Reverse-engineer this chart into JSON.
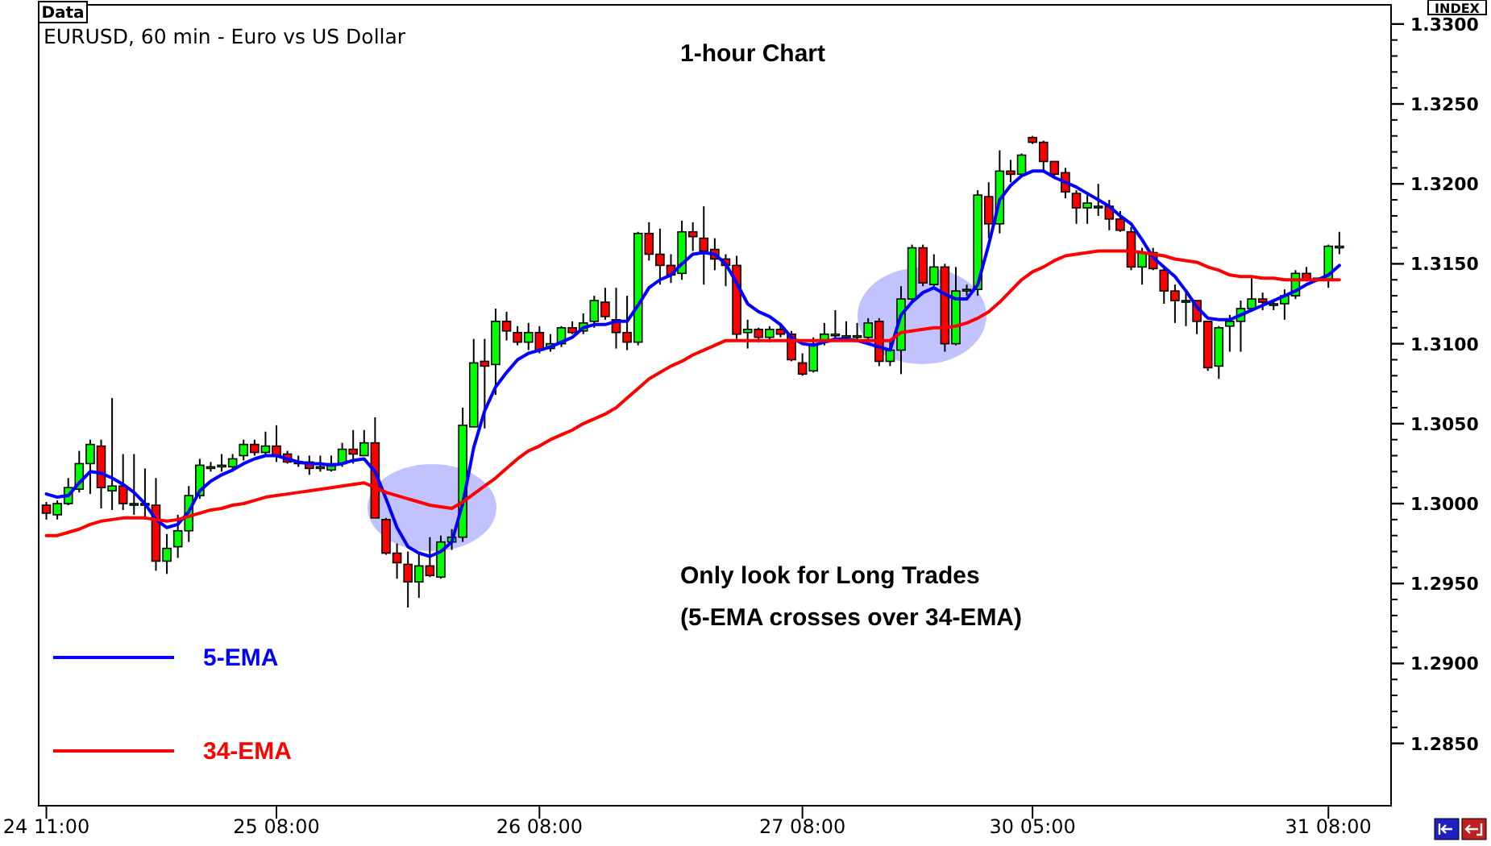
{
  "chart_data": {
    "type": "candlestick",
    "title": "1-hour Chart",
    "subtitle": "EURUSD, 60 min - Euro vs US Dollar",
    "annotations": [
      "Data",
      "INDEX",
      "Only look for Long Trades",
      "(5-EMA crosses over 34-EMA)"
    ],
    "categories": [
      "24 11:00",
      null,
      null,
      null,
      null,
      null,
      null,
      null,
      null,
      null,
      null,
      null,
      null,
      null,
      null,
      null,
      null,
      null,
      null,
      null,
      null,
      "25 08:00",
      null,
      null,
      null,
      null,
      null,
      null,
      null,
      null,
      null,
      null,
      null,
      null,
      null,
      null,
      null,
      null,
      null,
      null,
      null,
      null,
      null,
      null,
      null,
      "26 08:00",
      null,
      null,
      null,
      null,
      null,
      null,
      null,
      null,
      null,
      null,
      null,
      null,
      null,
      null,
      null,
      null,
      null,
      null,
      null,
      null,
      null,
      null,
      null,
      "27 08:00",
      null,
      null,
      null,
      null,
      null,
      null,
      null,
      null,
      null,
      null,
      null,
      null,
      null,
      null,
      null,
      null,
      null,
      null,
      null,
      null,
      "30 05:00",
      null,
      null,
      null,
      null,
      null,
      null,
      null,
      null,
      null,
      null,
      null,
      null,
      null,
      null,
      null,
      null,
      null,
      null,
      null,
      null,
      null,
      null,
      null,
      null,
      null,
      null,
      "31 08:00",
      null
    ],
    "ohlc": [
      [
        1.2999,
        1.3001,
        1.299,
        1.2994
      ],
      [
        1.2993,
        1.3002,
        1.299,
        1.3
      ],
      [
        1.3,
        1.3016,
        1.2999,
        1.301
      ],
      [
        1.3009,
        1.3033,
        1.3007,
        1.3025
      ],
      [
        1.3025,
        1.304,
        1.3006,
        1.3037
      ],
      [
        1.3036,
        1.304,
        1.2997,
        1.301
      ],
      [
        1.3008,
        1.3066,
        1.2996,
        1.3011
      ],
      [
        1.3011,
        1.3031,
        1.2996,
        1.3
      ],
      [
        1.3,
        1.3031,
        1.2993,
        1.3
      ],
      [
        1.3,
        1.3022,
        1.299,
        1.3
      ],
      [
        1.2999,
        1.3016,
        1.2958,
        1.2964
      ],
      [
        1.2964,
        1.2981,
        1.2956,
        1.2972
      ],
      [
        1.2973,
        1.2993,
        1.2966,
        1.2983
      ],
      [
        1.2983,
        1.3011,
        1.2976,
        1.3005
      ],
      [
        1.3005,
        1.3028,
        1.3003,
        1.3024
      ],
      [
        1.3023,
        1.3026,
        1.302,
        1.3023
      ],
      [
        1.3024,
        1.3031,
        1.302,
        1.3024
      ],
      [
        1.3023,
        1.3031,
        1.302,
        1.3028
      ],
      [
        1.303,
        1.304,
        1.3027,
        1.3037
      ],
      [
        1.3037,
        1.304,
        1.303,
        1.3032
      ],
      [
        1.3032,
        1.3045,
        1.303,
        1.3036
      ],
      [
        1.3036,
        1.3049,
        1.3026,
        1.303
      ],
      [
        1.3031,
        1.3033,
        1.3025,
        1.3026
      ],
      [
        1.3026,
        1.303,
        1.3023,
        1.3026
      ],
      [
        1.3026,
        1.303,
        1.3018,
        1.3022
      ],
      [
        1.3023,
        1.303,
        1.302,
        1.3023
      ],
      [
        1.3021,
        1.303,
        1.302,
        1.3025
      ],
      [
        1.3025,
        1.3038,
        1.3023,
        1.3034
      ],
      [
        1.3034,
        1.3046,
        1.3025,
        1.3031
      ],
      [
        1.303,
        1.3046,
        1.303,
        1.3038
      ],
      [
        1.3038,
        1.3054,
        1.2991,
        1.2991
      ],
      [
        1.299,
        1.2991,
        1.2968,
        1.2969
      ],
      [
        1.2969,
        1.2975,
        1.2953,
        1.2963
      ],
      [
        1.2962,
        1.297,
        1.2935,
        1.2951
      ],
      [
        1.2951,
        1.297,
        1.2941,
        1.2961
      ],
      [
        1.2961,
        1.2979,
        1.2954,
        1.2955
      ],
      [
        1.2954,
        1.298,
        1.2953,
        1.2976
      ],
      [
        1.2976,
        1.2984,
        1.2971,
        1.2979
      ],
      [
        1.2979,
        1.306,
        1.2976,
        1.3049
      ],
      [
        1.3048,
        1.3103,
        1.3048,
        1.3088
      ],
      [
        1.3089,
        1.3103,
        1.3047,
        1.3086
      ],
      [
        1.3087,
        1.3122,
        1.3068,
        1.3114
      ],
      [
        1.3114,
        1.312,
        1.3102,
        1.3108
      ],
      [
        1.3107,
        1.3111,
        1.3099,
        1.3101
      ],
      [
        1.3101,
        1.3113,
        1.3096,
        1.3107
      ],
      [
        1.3107,
        1.3111,
        1.3094,
        1.3096
      ],
      [
        1.3097,
        1.3106,
        1.3095,
        1.31
      ],
      [
        1.31,
        1.3111,
        1.3098,
        1.311
      ],
      [
        1.311,
        1.3114,
        1.3106,
        1.3107
      ],
      [
        1.3108,
        1.3119,
        1.3106,
        1.3113
      ],
      [
        1.3114,
        1.313,
        1.311,
        1.3127
      ],
      [
        1.3126,
        1.3135,
        1.3115,
        1.3117
      ],
      [
        1.3115,
        1.3135,
        1.3097,
        1.3107
      ],
      [
        1.3107,
        1.313,
        1.3096,
        1.3101
      ],
      [
        1.3101,
        1.317,
        1.3099,
        1.3169
      ],
      [
        1.3169,
        1.3176,
        1.3152,
        1.3156
      ],
      [
        1.3156,
        1.3172,
        1.3137,
        1.3149
      ],
      [
        1.3149,
        1.3156,
        1.3138,
        1.3143
      ],
      [
        1.3144,
        1.3177,
        1.314,
        1.317
      ],
      [
        1.317,
        1.3176,
        1.3158,
        1.3167
      ],
      [
        1.3166,
        1.3186,
        1.3137,
        1.3158
      ],
      [
        1.3159,
        1.3166,
        1.3146,
        1.3153
      ],
      [
        1.3153,
        1.3156,
        1.3136,
        1.3149
      ],
      [
        1.3149,
        1.3155,
        1.3103,
        1.3106
      ],
      [
        1.3107,
        1.3115,
        1.3097,
        1.3109
      ],
      [
        1.3109,
        1.311,
        1.3101,
        1.3104
      ],
      [
        1.3104,
        1.3111,
        1.3101,
        1.3109
      ],
      [
        1.3109,
        1.3113,
        1.3104,
        1.3106
      ],
      [
        1.3106,
        1.3108,
        1.3089,
        1.309
      ],
      [
        1.3088,
        1.3094,
        1.308,
        1.3081
      ],
      [
        1.3083,
        1.3104,
        1.3082,
        1.31
      ],
      [
        1.3101,
        1.3113,
        1.3099,
        1.3106
      ],
      [
        1.3106,
        1.3121,
        1.3103,
        1.3106
      ],
      [
        1.3105,
        1.3114,
        1.3103,
        1.3105
      ],
      [
        1.3105,
        1.3113,
        1.3102,
        1.3105
      ],
      [
        1.3104,
        1.3116,
        1.3103,
        1.3113
      ],
      [
        1.3114,
        1.3116,
        1.3086,
        1.3089
      ],
      [
        1.3089,
        1.3101,
        1.3086,
        1.3096
      ],
      [
        1.3096,
        1.3136,
        1.3081,
        1.3128
      ],
      [
        1.3128,
        1.3162,
        1.3126,
        1.316
      ],
      [
        1.316,
        1.3162,
        1.3136,
        1.3138
      ],
      [
        1.3137,
        1.3156,
        1.3136,
        1.3148
      ],
      [
        1.3148,
        1.315,
        1.3095,
        1.31
      ],
      [
        1.31,
        1.3148,
        1.3099,
        1.3133
      ],
      [
        1.3134,
        1.3137,
        1.313,
        1.3134
      ],
      [
        1.3134,
        1.3196,
        1.313,
        1.3193
      ],
      [
        1.3192,
        1.3201,
        1.3166,
        1.3175
      ],
      [
        1.3175,
        1.3221,
        1.3169,
        1.3208
      ],
      [
        1.3208,
        1.3215,
        1.3201,
        1.3206
      ],
      [
        1.3206,
        1.3219,
        1.3206,
        1.3218
      ],
      [
        1.3229,
        1.323,
        1.3225,
        1.3226
      ],
      [
        1.3226,
        1.3227,
        1.3207,
        1.3214
      ],
      [
        1.3214,
        1.3214,
        1.3205,
        1.3206
      ],
      [
        1.3207,
        1.321,
        1.3191,
        1.3195
      ],
      [
        1.3194,
        1.3196,
        1.3175,
        1.3185
      ],
      [
        1.3185,
        1.3193,
        1.3175,
        1.3188
      ],
      [
        1.3186,
        1.32,
        1.318,
        1.3186
      ],
      [
        1.3186,
        1.319,
        1.3171,
        1.3178
      ],
      [
        1.3178,
        1.3183,
        1.317,
        1.3171
      ],
      [
        1.317,
        1.3173,
        1.3146,
        1.3148
      ],
      [
        1.3148,
        1.316,
        1.3137,
        1.3157
      ],
      [
        1.3157,
        1.316,
        1.3146,
        1.3147
      ],
      [
        1.3146,
        1.3149,
        1.3125,
        1.3133
      ],
      [
        1.3133,
        1.3137,
        1.3113,
        1.3127
      ],
      [
        1.3127,
        1.3134,
        1.3111,
        1.3127
      ],
      [
        1.3127,
        1.3127,
        1.3106,
        1.3114
      ],
      [
        1.3114,
        1.3114,
        1.3083,
        1.3085
      ],
      [
        1.3086,
        1.3111,
        1.3078,
        1.311
      ],
      [
        1.3111,
        1.3118,
        1.3095,
        1.3114
      ],
      [
        1.3114,
        1.3127,
        1.3095,
        1.3122
      ],
      [
        1.3122,
        1.3141,
        1.312,
        1.3128
      ],
      [
        1.3128,
        1.3132,
        1.3121,
        1.3126
      ],
      [
        1.3125,
        1.3127,
        1.3121,
        1.3125
      ],
      [
        1.3125,
        1.3134,
        1.3115,
        1.313
      ],
      [
        1.313,
        1.3146,
        1.3128,
        1.3144
      ],
      [
        1.3144,
        1.3148,
        1.3139,
        1.314
      ],
      [
        1.3141,
        1.3141,
        1.3139,
        1.314
      ],
      [
        1.314,
        1.3162,
        1.3135,
        1.3161
      ],
      [
        1.3161,
        1.317,
        1.3156,
        1.3161
      ]
    ],
    "colors": [
      "#ff0000",
      "#00ff00",
      "#00ff00",
      "#00ff00",
      "#00ff00",
      "#ff0000",
      "#00ff00",
      "#ff0000",
      "#00ff00",
      "#00ff00",
      "#ff0000",
      "#00ff00",
      "#00ff00",
      "#00ff00",
      "#00ff00",
      "#00ff00",
      "#00ff00",
      "#00ff00",
      "#00ff00",
      "#ff0000",
      "#00ff00",
      "#ff0000",
      "#ff0000",
      "#00ff00",
      "#ff0000",
      "#00ff00",
      "#00ff00",
      "#00ff00",
      "#ff0000",
      "#00ff00",
      "#ff0000",
      "#ff0000",
      "#ff0000",
      "#ff0000",
      "#00ff00",
      "#ff0000",
      "#00ff00",
      "#00ff00",
      "#00ff00",
      "#00ff00",
      "#ff0000",
      "#00ff00",
      "#ff0000",
      "#ff0000",
      "#00ff00",
      "#ff0000",
      "#00ff00",
      "#00ff00",
      "#ff0000",
      "#00ff00",
      "#00ff00",
      "#ff0000",
      "#ff0000",
      "#ff0000",
      "#00ff00",
      "#ff0000",
      "#ff0000",
      "#ff0000",
      "#00ff00",
      "#ff0000",
      "#ff0000",
      "#ff0000",
      "#ff0000",
      "#ff0000",
      "#00ff00",
      "#ff0000",
      "#00ff00",
      "#ff0000",
      "#ff0000",
      "#ff0000",
      "#00ff00",
      "#00ff00",
      "#00ff00",
      "#00ff00",
      "#00ff00",
      "#00ff00",
      "#ff0000",
      "#00ff00",
      "#00ff00",
      "#00ff00",
      "#ff0000",
      "#00ff00",
      "#ff0000",
      "#00ff00",
      "#00ff00",
      "#00ff00",
      "#ff0000",
      "#00ff00",
      "#ff0000",
      "#00ff00",
      "#ff0000",
      "#ff0000",
      "#ff0000",
      "#ff0000",
      "#ff0000",
      "#00ff00",
      "#00ff00",
      "#ff0000",
      "#ff0000",
      "#ff0000",
      "#00ff00",
      "#ff0000",
      "#ff0000",
      "#ff0000",
      "#00ff00",
      "#ff0000",
      "#ff0000",
      "#00ff00",
      "#00ff00",
      "#00ff00",
      "#00ff00",
      "#ff0000",
      "#00ff00",
      "#00ff00",
      "#00ff00",
      "#ff0000",
      "#ff0000",
      "#00ff00",
      "#00ff00"
    ],
    "series": [
      {
        "name": "5-EMA",
        "type": "line",
        "color": "#0000ff",
        "values": [
          1.3006,
          1.3004,
          1.3005,
          1.3013,
          1.302,
          1.3019,
          1.3016,
          1.3012,
          1.3007,
          1.3,
          1.299,
          1.2985,
          1.2987,
          1.2995,
          1.3008,
          1.3014,
          1.3018,
          1.3021,
          1.3025,
          1.3028,
          1.303,
          1.303,
          1.3028,
          1.3026,
          1.3025,
          1.3025,
          1.3024,
          1.3025,
          1.3027,
          1.3028,
          1.302,
          1.3003,
          1.2985,
          1.2973,
          1.2969,
          1.2967,
          1.297,
          1.2976,
          1.3,
          1.3035,
          1.3058,
          1.3073,
          1.3082,
          1.309,
          1.3094,
          1.3096,
          1.3098,
          1.3101,
          1.3104,
          1.311,
          1.3112,
          1.3112,
          1.3114,
          1.3114,
          1.3124,
          1.3135,
          1.314,
          1.3143,
          1.315,
          1.3156,
          1.3157,
          1.3156,
          1.315,
          1.3138,
          1.3125,
          1.312,
          1.3117,
          1.3112,
          1.3104,
          1.31,
          1.3099,
          1.3101,
          1.3103,
          1.3103,
          1.3102,
          1.31,
          1.3098,
          1.3096,
          1.3118,
          1.3126,
          1.3132,
          1.3135,
          1.3131,
          1.3128,
          1.3128,
          1.3137,
          1.3162,
          1.319,
          1.3199,
          1.3205,
          1.3208,
          1.3208,
          1.3204,
          1.3201,
          1.3198,
          1.3194,
          1.319,
          1.3186,
          1.318,
          1.3175,
          1.3165,
          1.3154,
          1.3148,
          1.3142,
          1.3133,
          1.3123,
          1.3116,
          1.3115,
          1.3115,
          1.3118,
          1.3121,
          1.3124,
          1.3127,
          1.313,
          1.3133,
          1.3137,
          1.314,
          1.3143,
          1.3149
        ]
      },
      {
        "name": "34-EMA",
        "type": "line",
        "color": "#ff0000",
        "values": [
          1.298,
          1.298,
          1.2982,
          1.2984,
          1.2987,
          1.2989,
          1.299,
          1.2991,
          1.2991,
          1.2991,
          1.299,
          1.2989,
          1.299,
          1.2992,
          1.2994,
          1.2996,
          1.2997,
          1.2999,
          1.3,
          1.3002,
          1.3004,
          1.3005,
          1.3006,
          1.3007,
          1.3008,
          1.3009,
          1.301,
          1.3011,
          1.3012,
          1.3013,
          1.301,
          1.3007,
          1.3005,
          1.3003,
          1.3001,
          1.2999,
          1.2998,
          1.2997,
          1.3001,
          1.3006,
          1.3011,
          1.3016,
          1.3022,
          1.3028,
          1.3033,
          1.3036,
          1.304,
          1.3043,
          1.3046,
          1.305,
          1.3053,
          1.3056,
          1.306,
          1.3066,
          1.3072,
          1.3078,
          1.3082,
          1.3086,
          1.3089,
          1.3093,
          1.3096,
          1.3099,
          1.3102,
          1.3102,
          1.3102,
          1.3102,
          1.3102,
          1.3102,
          1.3102,
          1.3102,
          1.3102,
          1.3102,
          1.3102,
          1.3102,
          1.3102,
          1.3102,
          1.3102,
          1.3102,
          1.3107,
          1.3108,
          1.3109,
          1.311,
          1.311,
          1.3111,
          1.3113,
          1.3116,
          1.312,
          1.3126,
          1.3133,
          1.314,
          1.3145,
          1.3148,
          1.3152,
          1.3155,
          1.3156,
          1.3157,
          1.3158,
          1.3158,
          1.3158,
          1.3158,
          1.3157,
          1.3156,
          1.3155,
          1.3153,
          1.3152,
          1.3151,
          1.3148,
          1.3146,
          1.3143,
          1.3142,
          1.3142,
          1.3141,
          1.3141,
          1.314,
          1.314,
          1.314,
          1.314,
          1.314,
          1.314
        ]
      }
    ],
    "legend": "bottom left",
    "ylim": [
      1.2811,
      1.3312
    ],
    "yticks": [
      {
        "value": 1.285,
        "label": "1.2850"
      },
      {
        "value": 1.29,
        "label": "1.2900"
      },
      {
        "value": 1.295,
        "label": "1.2950"
      },
      {
        "value": 1.3,
        "label": "1.3000"
      },
      {
        "value": 1.305,
        "label": "1.3050"
      },
      {
        "value": 1.31,
        "label": "1.3100"
      },
      {
        "value": 1.315,
        "label": "1.3150"
      },
      {
        "value": 1.32,
        "label": "1.3200"
      },
      {
        "value": 1.325,
        "label": "1.3250"
      },
      {
        "value": 1.33,
        "label": "1.3300"
      }
    ]
  }
}
